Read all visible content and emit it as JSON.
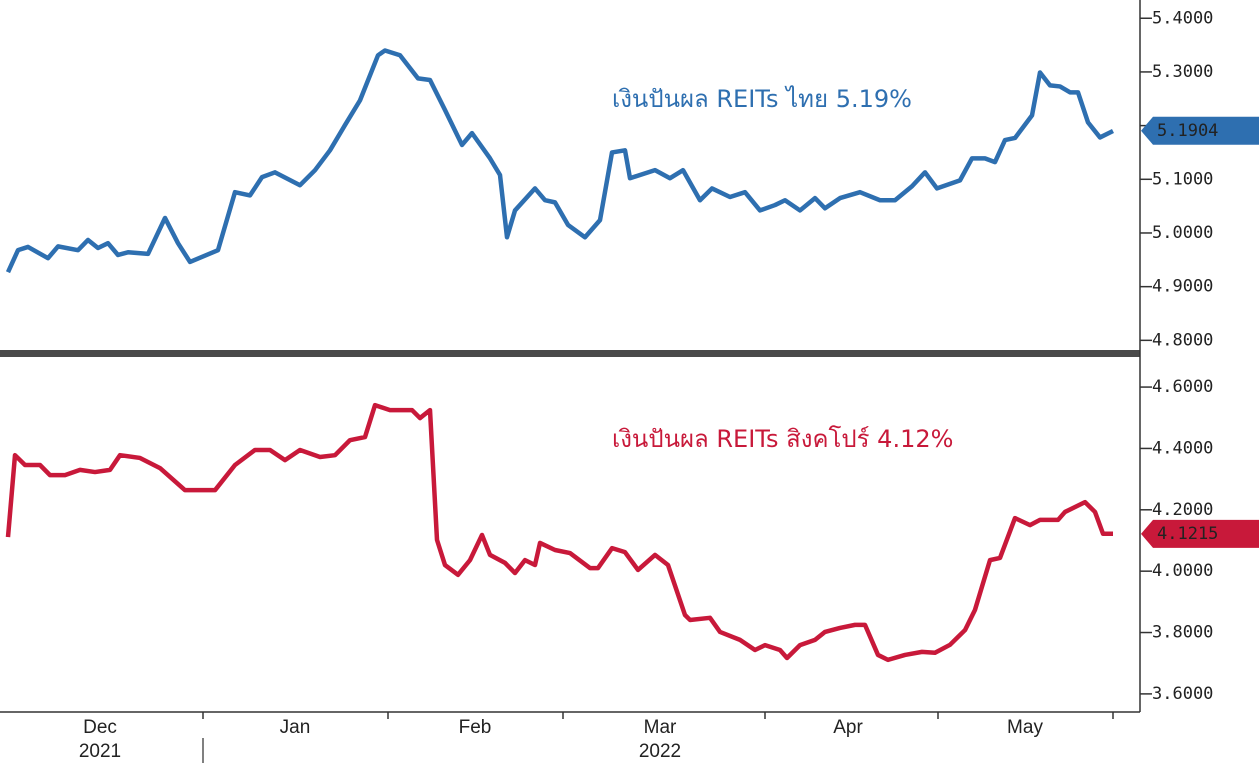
{
  "chart_data": [
    {
      "type": "line",
      "annotation": "เงินปันผล REITs ไทย 5.19%",
      "xlim": [
        -0.8,
        113.2
      ],
      "ylim": [
        4.782,
        5.434
      ],
      "yticks": [
        {
          "value": 5.4,
          "label": "5.4000"
        },
        {
          "value": 5.3,
          "label": "5.3000"
        },
        {
          "value": 5.2,
          "label": "5.2000"
        },
        {
          "value": 5.1,
          "label": "5.1000"
        },
        {
          "value": 5.0,
          "label": "5.0000"
        },
        {
          "value": 4.9,
          "label": "4.9000"
        },
        {
          "value": 4.8,
          "label": "4.8000"
        }
      ],
      "last_value": 5.1904,
      "series": [
        {
          "color": "#2e6fb0",
          "x": [
            0,
            1,
            2,
            4,
            5,
            7,
            8,
            9,
            10,
            11,
            12,
            14,
            15.7,
            17,
            18.2,
            21,
            22.7,
            24.2,
            25.4,
            26.7,
            29.2,
            30.7,
            32.2,
            33.7,
            35.2,
            37,
            37.7,
            39.2,
            41,
            42.2,
            43.7,
            45.4,
            46.4,
            48.2,
            49.2,
            49.9,
            50.7,
            52.7,
            53.7,
            54.7,
            56,
            57.7,
            59.2,
            60.4,
            61.7,
            62.2,
            64.7,
            66.2,
            67.5,
            69.2,
            70.4,
            72.2,
            73.7,
            75.2,
            76.7,
            77.7,
            79.2,
            80.7,
            81.7,
            83.2,
            85.2,
            87.2,
            88.7,
            90.4,
            91.7,
            92.9,
            95.2,
            96.4,
            97.7,
            98.7,
            99.7,
            100.7,
            102.4,
            103.2,
            104.2,
            105.2,
            106.2,
            107,
            108,
            109.2,
            110.5
          ],
          "values": [
            4.927,
            4.968,
            4.974,
            4.953,
            4.975,
            4.968,
            4.987,
            4.972,
            4.981,
            4.959,
            4.964,
            4.961,
            5.028,
            4.981,
            4.946,
            4.968,
            5.076,
            5.07,
            5.104,
            5.113,
            5.089,
            5.117,
            5.154,
            5.201,
            5.247,
            5.331,
            5.34,
            5.331,
            5.288,
            5.285,
            5.229,
            5.164,
            5.186,
            5.139,
            5.108,
            4.992,
            5.042,
            5.083,
            5.061,
            5.057,
            5.015,
            4.992,
            5.024,
            5.15,
            5.154,
            5.102,
            5.117,
            5.102,
            5.117,
            5.061,
            5.083,
            5.067,
            5.076,
            5.042,
            5.052,
            5.061,
            5.042,
            5.065,
            5.046,
            5.065,
            5.076,
            5.061,
            5.061,
            5.087,
            5.113,
            5.083,
            5.098,
            5.139,
            5.139,
            5.132,
            5.173,
            5.177,
            5.219,
            5.299,
            5.275,
            5.273,
            5.262,
            5.262,
            5.206,
            5.178,
            5.19
          ]
        }
      ]
    },
    {
      "type": "line",
      "annotation": "เงินปันผล REITs สิงคโปร์ 4.12%",
      "xlim": [
        -0.8,
        113.2
      ],
      "ylim": [
        3.541,
        4.698
      ],
      "yticks": [
        {
          "value": 4.6,
          "label": "4.6000"
        },
        {
          "value": 4.4,
          "label": "4.4000"
        },
        {
          "value": 4.2,
          "label": "4.2000"
        },
        {
          "value": 4.0,
          "label": "4.0000"
        },
        {
          "value": 3.8,
          "label": "3.8000"
        },
        {
          "value": 3.6,
          "label": "3.6000"
        }
      ],
      "last_value": 4.1215,
      "xticks": [
        19.5,
        38,
        55.5,
        75.7,
        93,
        110.5
      ],
      "x_labels": [
        {
          "value": 9.2,
          "label": "Dec"
        },
        {
          "value": 28.7,
          "label": "Jan"
        },
        {
          "value": 46.7,
          "label": "Feb"
        },
        {
          "value": 65.2,
          "label": "Mar"
        },
        {
          "value": 84,
          "label": "Apr"
        },
        {
          "value": 101.7,
          "label": "May"
        }
      ],
      "x_sublabels": [
        {
          "value": 9.2,
          "label": "2021"
        },
        {
          "value": 65.2,
          "label": "2022"
        }
      ],
      "series": [
        {
          "color": "#c8193a",
          "x": [
            0,
            0.7,
            1.7,
            3.2,
            4.2,
            5.7,
            7.2,
            8.7,
            10.2,
            11.2,
            13.2,
            15.2,
            17.7,
            20.7,
            22.7,
            24.7,
            26.2,
            27.7,
            29.2,
            31.2,
            32.7,
            34.2,
            35.7,
            36.7,
            38.2,
            40.4,
            41.2,
            42.2,
            42.9,
            43.7,
            45,
            46.2,
            47.4,
            48.2,
            49.7,
            50.7,
            51.7,
            52.7,
            53.2,
            54.7,
            56.2,
            58.2,
            59,
            60.4,
            61.7,
            63,
            64.7,
            66,
            67.7,
            68.2,
            70.2,
            71.2,
            73.2,
            74.7,
            75.7,
            77.2,
            77.9,
            79.2,
            80.7,
            81.7,
            83.2,
            84.7,
            85.7,
            87,
            88,
            89.7,
            91.4,
            92.7,
            94.2,
            95.7,
            96.7,
            98.2,
            99.2,
            100.7,
            102.2,
            103.2,
            105,
            105.7,
            107.7,
            108.7,
            109.5,
            110.5
          ],
          "values": [
            4.111,
            4.378,
            4.346,
            4.346,
            4.313,
            4.313,
            4.33,
            4.323,
            4.33,
            4.378,
            4.369,
            4.336,
            4.264,
            4.264,
            4.346,
            4.395,
            4.395,
            4.362,
            4.395,
            4.372,
            4.378,
            4.427,
            4.437,
            4.541,
            4.525,
            4.525,
            4.499,
            4.525,
            4.102,
            4.02,
            3.988,
            4.036,
            4.118,
            4.053,
            4.027,
            3.994,
            4.036,
            4.02,
            4.092,
            4.069,
            4.059,
            4.01,
            4.01,
            4.075,
            4.062,
            4.004,
            4.053,
            4.02,
            3.857,
            3.841,
            3.848,
            3.802,
            3.776,
            3.743,
            3.759,
            3.743,
            3.717,
            3.759,
            3.776,
            3.802,
            3.815,
            3.825,
            3.825,
            3.727,
            3.711,
            3.727,
            3.737,
            3.734,
            3.76,
            3.808,
            3.874,
            4.036,
            4.043,
            4.173,
            4.15,
            4.167,
            4.167,
            4.193,
            4.225,
            4.193,
            4.122,
            4.122
          ]
        }
      ]
    }
  ]
}
